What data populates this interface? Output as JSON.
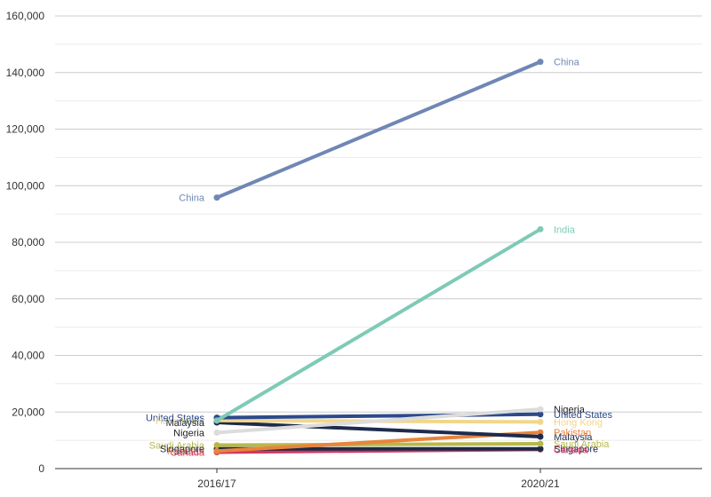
{
  "chart_data": {
    "type": "line",
    "categories": [
      "2016/17",
      "2020/21"
    ],
    "ylim": [
      0,
      160000
    ],
    "yticks": [
      "0",
      "20,000",
      "40,000",
      "60,000",
      "80,000",
      "100,000",
      "120,000",
      "140,000",
      "160,000"
    ],
    "grid": true,
    "legend": "none",
    "series": [
      {
        "name": "China",
        "values": [
          95800,
          143800
        ],
        "color": "#6f87b5"
      },
      {
        "name": "India",
        "values": [
          17000,
          84600
        ],
        "color": "#7ecab6"
      },
      {
        "name": "Nigeria",
        "values": [
          12700,
          21000
        ],
        "color": "#dcdcdc"
      },
      {
        "name": "United States",
        "values": [
          18000,
          19200
        ],
        "color": "#2c4a8c"
      },
      {
        "name": "Hong Kong",
        "values": [
          17000,
          16500
        ],
        "color": "#f2d68a"
      },
      {
        "name": "Malaysia",
        "values": [
          16300,
          11300
        ],
        "color": "#1d2b4d"
      },
      {
        "name": "Pakistan",
        "values": [
          6200,
          12800
        ],
        "color": "#e8843c"
      },
      {
        "name": "Saudi Arabia",
        "values": [
          8300,
          8800
        ],
        "color": "#b8b84a"
      },
      {
        "name": "Singapore",
        "values": [
          7000,
          7000
        ],
        "color": "#1c2b48"
      },
      {
        "name": "Canada",
        "values": [
          5800,
          6800
        ],
        "color": "#d2375e"
      }
    ]
  }
}
